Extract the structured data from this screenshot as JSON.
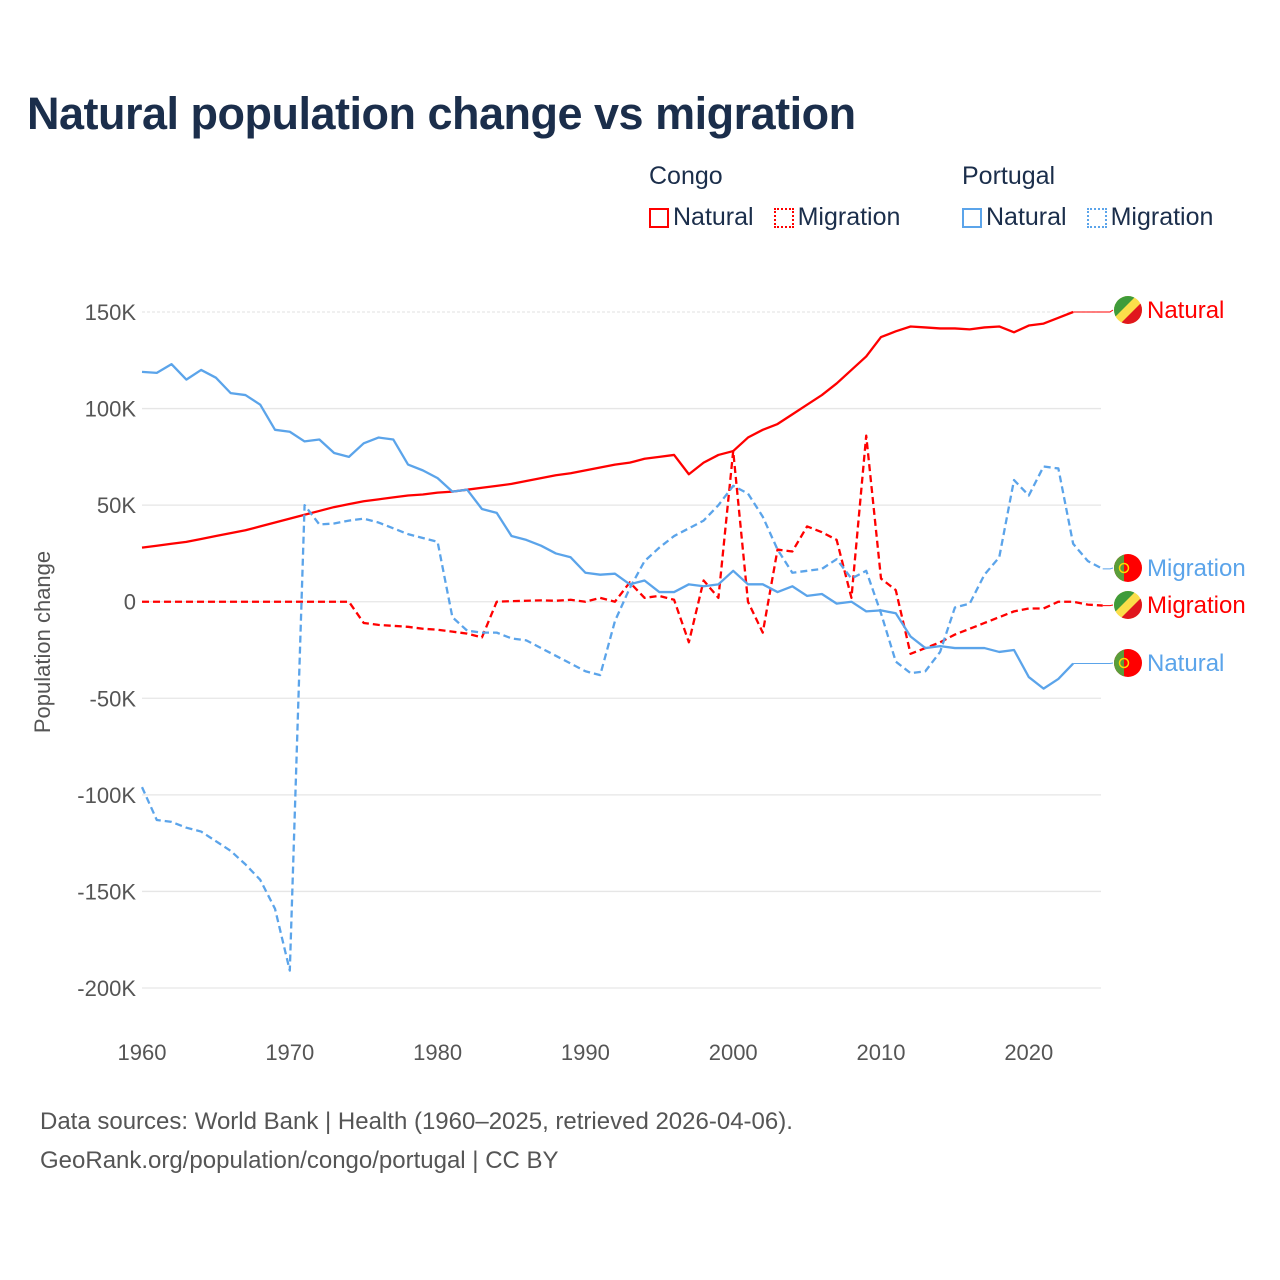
{
  "title": "Natural population change vs migration",
  "legend": {
    "groups": [
      {
        "name": "Congo",
        "items": [
          {
            "label": "Natural",
            "style": "solid",
            "color": "#ff0000"
          },
          {
            "label": "Migration",
            "style": "dotted",
            "color": "#ff0000"
          }
        ]
      },
      {
        "name": "Portugal",
        "items": [
          {
            "label": "Natural",
            "style": "solid",
            "color": "#5ba4ea"
          },
          {
            "label": "Migration",
            "style": "dotted",
            "color": "#5ba4ea"
          }
        ]
      }
    ]
  },
  "footer": {
    "line1": "Data sources: World Bank | Health (1960–2025, retrieved 2026-04-06).",
    "line2": "GeoRank.org/population/congo/portugal | CC BY"
  },
  "chart_data": {
    "type": "line",
    "title": "Natural population change vs migration",
    "xlabel": "",
    "ylabel": "Population change",
    "xlim": [
      1960,
      2025
    ],
    "ylim": [
      -200000,
      150000
    ],
    "x_ticks": [
      "1960",
      "1970",
      "1980",
      "1990",
      "2000",
      "2010",
      "2020"
    ],
    "y_ticks": [
      {
        "value": 150000,
        "label": "150K"
      },
      {
        "value": 100000,
        "label": "100K"
      },
      {
        "value": 50000,
        "label": "50K"
      },
      {
        "value": 0,
        "label": "0"
      },
      {
        "value": -50000,
        "label": "-50K"
      },
      {
        "value": -100000,
        "label": "-100K"
      },
      {
        "value": -150000,
        "label": "-150K"
      },
      {
        "value": -200000,
        "label": "-200K"
      }
    ],
    "grid": true,
    "series": [
      {
        "name": "Congo Natural",
        "country": "Congo",
        "end_label": "Natural",
        "color": "#ff0000",
        "dash": false,
        "start": 1960,
        "values_k": [
          28,
          29,
          30,
          31,
          32.5,
          34,
          35.5,
          37,
          39,
          41,
          43,
          45,
          47,
          49,
          50.5,
          52,
          53,
          54,
          55,
          55.5,
          56.5,
          57,
          58,
          59,
          60,
          61,
          62.5,
          64,
          65.5,
          66.5,
          68,
          69.5,
          71,
          72,
          74,
          75,
          76,
          66,
          72,
          76,
          78,
          85,
          89,
          92,
          97,
          102,
          107,
          113,
          120,
          127,
          137,
          140,
          142.5,
          142,
          141.5,
          141.5,
          141,
          142,
          142.5,
          139.5,
          143,
          144,
          147,
          150
        ]
      },
      {
        "name": "Congo Migration",
        "country": "Congo",
        "end_label": "Migration",
        "color": "#ff0000",
        "dash": true,
        "start": 1960,
        "values_k": [
          0,
          0,
          0,
          0,
          0,
          0,
          0,
          0,
          0,
          0,
          0,
          0,
          0,
          0,
          0,
          -11,
          -12,
          -12.5,
          -13,
          -14,
          -14.5,
          -15.5,
          -16.5,
          -18.5,
          0,
          0.3,
          0.5,
          0.7,
          0.5,
          1,
          0,
          2,
          0,
          10,
          2,
          3,
          1,
          -21,
          11,
          2,
          78,
          0,
          -16,
          27,
          26,
          39,
          36,
          32,
          2,
          86,
          12,
          6,
          -27,
          -24,
          -21,
          -17,
          -14,
          -11,
          -8,
          -5,
          -3.5,
          -3.5,
          0,
          0,
          -1.5,
          -2
        ]
      },
      {
        "name": "Portugal Natural",
        "country": "Portugal",
        "end_label": "Natural",
        "color": "#5ba4ea",
        "dash": false,
        "start": 1960,
        "values_k": [
          119,
          118.5,
          123,
          115,
          120,
          116,
          108,
          107,
          102,
          89,
          88,
          83,
          84,
          77,
          75,
          82,
          85,
          84,
          71,
          68,
          64,
          57,
          58,
          48,
          46,
          34,
          32,
          29,
          25,
          23,
          15,
          14,
          14.5,
          9,
          11,
          5,
          5,
          9,
          8,
          9,
          16,
          9,
          9,
          5,
          8,
          3,
          4,
          -1,
          0,
          -5,
          -4.5,
          -6,
          -18,
          -24,
          -23,
          -24,
          -24,
          -24,
          -26,
          -25,
          -39,
          -45,
          -40,
          -32
        ]
      },
      {
        "name": "Portugal Migration",
        "country": "Portugal",
        "end_label": "Migration",
        "color": "#5ba4ea",
        "dash": true,
        "start": 1960,
        "values_k": [
          -96,
          -113,
          -114,
          -117,
          -119,
          -124,
          -129,
          -136,
          -144,
          -159,
          -191,
          50,
          40,
          40.5,
          42,
          43,
          41,
          38,
          35,
          33,
          31,
          -8,
          -15,
          -16,
          -16,
          -19,
          -20,
          -24,
          -28,
          -32,
          -36,
          -38,
          -10,
          7,
          21,
          28,
          34,
          38,
          42,
          50,
          60,
          56,
          44,
          27,
          15,
          16,
          17,
          22,
          12,
          16,
          -6,
          -31,
          -37,
          -36,
          -26,
          -3,
          -1,
          14,
          23,
          63,
          55,
          70,
          69,
          30,
          21,
          17
        ]
      }
    ]
  }
}
